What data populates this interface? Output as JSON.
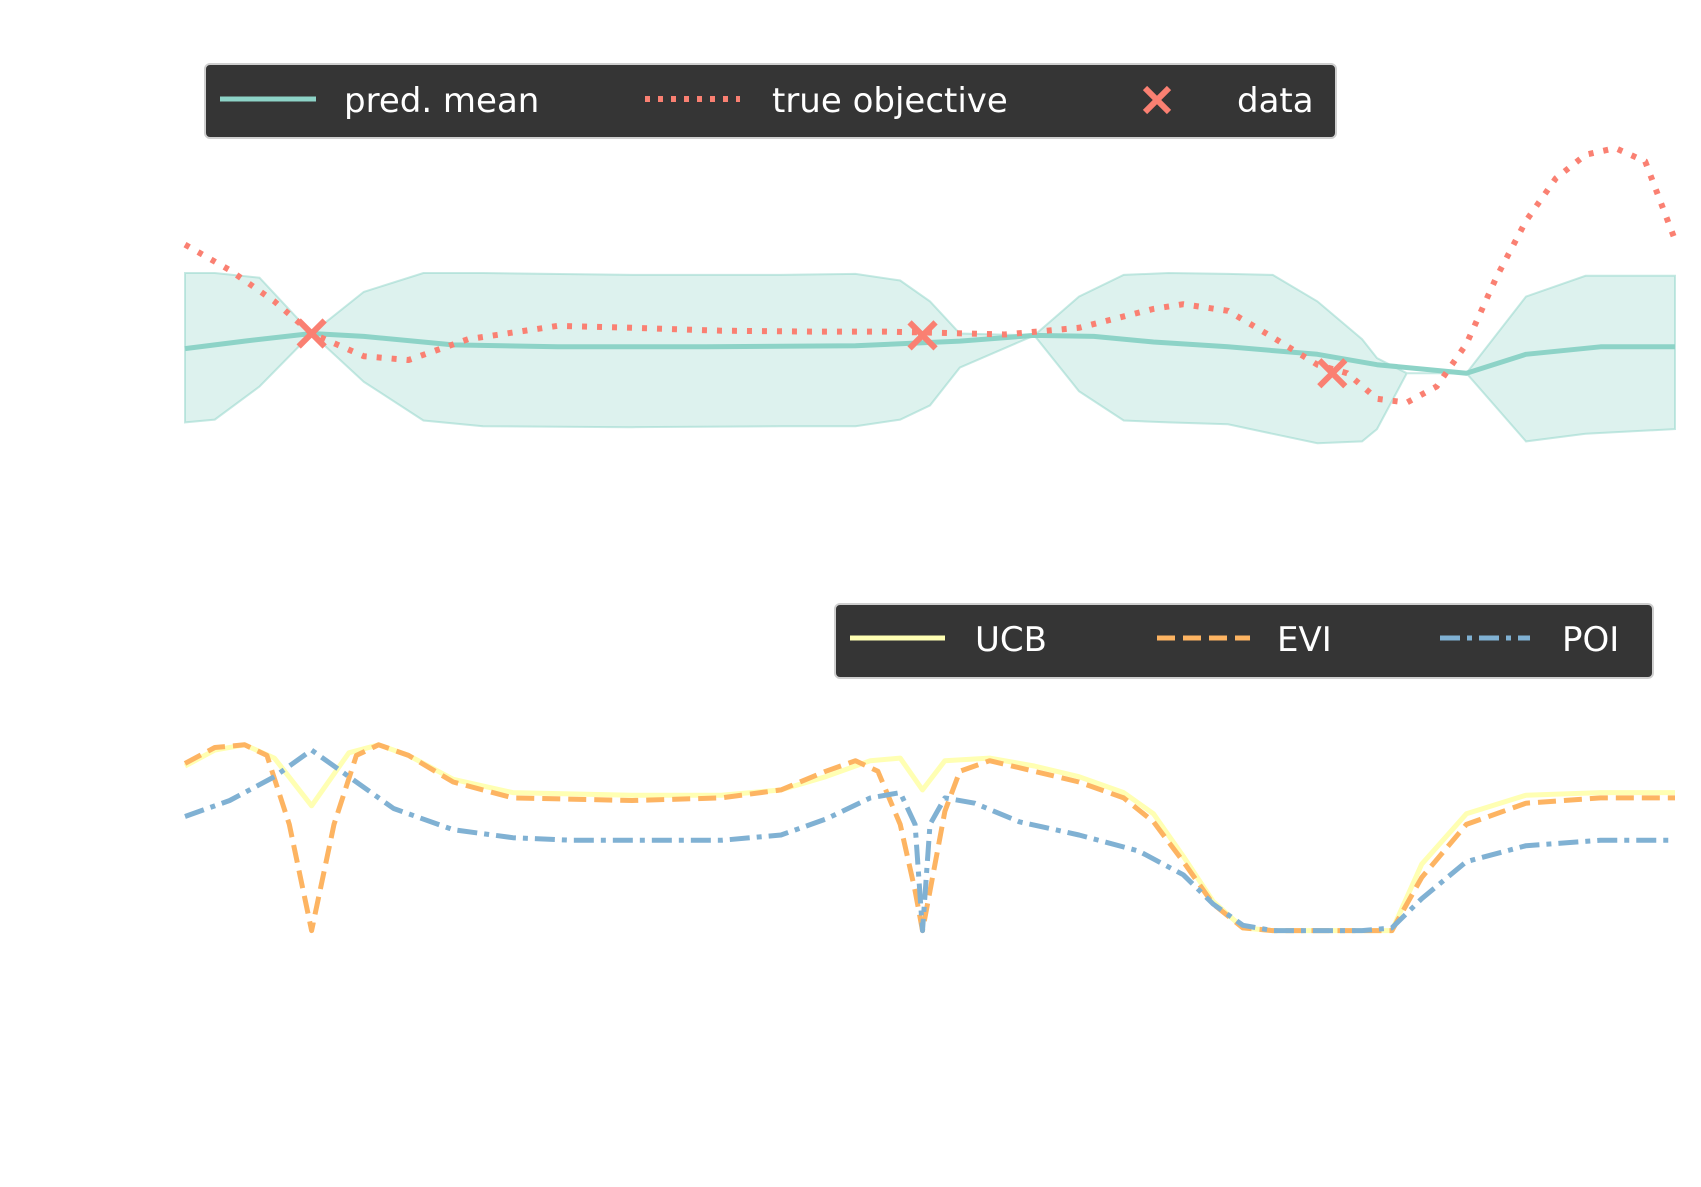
{
  "chart_data": [
    {
      "type": "line",
      "legend": {
        "placement": "top",
        "entries": [
          {
            "label": "pred. mean",
            "style": "solid",
            "color": "#8dd3c7"
          },
          {
            "label": "true objective",
            "style": "dotted",
            "color": "#fa8072"
          },
          {
            "label": "data",
            "style": "marker-x",
            "color": "#fa8072"
          }
        ]
      },
      "xlim": [
        0,
        1
      ],
      "ylim": [
        -1.4,
        2.3
      ],
      "grid": false,
      "series": [
        {
          "name": "pred. mean",
          "color": "#8dd3c7",
          "style": "solid",
          "x": [
            0.0,
            0.04,
            0.085,
            0.12,
            0.18,
            0.25,
            0.35,
            0.45,
            0.52,
            0.57,
            0.61,
            0.65,
            0.7,
            0.76,
            0.8,
            0.86,
            0.9,
            0.95,
            1.0
          ],
          "y": [
            0.2,
            0.28,
            0.36,
            0.33,
            0.24,
            0.22,
            0.22,
            0.23,
            0.28,
            0.34,
            0.33,
            0.27,
            0.22,
            0.14,
            0.03,
            -0.06,
            0.14,
            0.22,
            0.22
          ]
        },
        {
          "name": "true objective",
          "color": "#fa8072",
          "style": "dotted",
          "x": [
            0.0,
            0.03,
            0.06,
            0.085,
            0.12,
            0.15,
            0.19,
            0.25,
            0.3,
            0.36,
            0.42,
            0.47,
            0.5,
            0.55,
            0.6,
            0.65,
            0.67,
            0.7,
            0.73,
            0.76,
            0.78,
            0.8,
            0.82,
            0.84,
            0.86,
            0.88,
            0.9,
            0.92,
            0.94,
            0.96,
            0.98,
            1.0
          ],
          "y": [
            1.3,
            1.03,
            0.7,
            0.36,
            0.12,
            0.08,
            0.3,
            0.44,
            0.42,
            0.39,
            0.38,
            0.38,
            0.37,
            0.35,
            0.42,
            0.62,
            0.67,
            0.6,
            0.32,
            0.03,
            -0.06,
            -0.33,
            -0.37,
            -0.2,
            0.25,
            0.95,
            1.55,
            2.0,
            2.25,
            2.32,
            2.18,
            1.35
          ]
        }
      ],
      "confidence_band": {
        "color": "#8dd3c7",
        "x": [
          0.0,
          0.02,
          0.05,
          0.085,
          0.12,
          0.16,
          0.2,
          0.3,
          0.4,
          0.45,
          0.48,
          0.5,
          0.52,
          0.57,
          0.6,
          0.63,
          0.66,
          0.7,
          0.73,
          0.76,
          0.79,
          0.8,
          0.82,
          0.86,
          0.9,
          0.94,
          1.0
        ],
        "lower": [
          -0.58,
          -0.55,
          -0.2,
          0.36,
          -0.15,
          -0.56,
          -0.62,
          -0.63,
          -0.62,
          -0.62,
          -0.55,
          -0.4,
          0.0,
          0.34,
          -0.25,
          -0.56,
          -0.58,
          -0.6,
          -0.7,
          -0.8,
          -0.78,
          -0.65,
          -0.06,
          -0.06,
          -0.78,
          -0.7,
          -0.65
        ],
        "upper": [
          1.0,
          1.0,
          0.95,
          0.36,
          0.8,
          1.0,
          1.0,
          0.98,
          0.98,
          0.99,
          0.92,
          0.7,
          0.36,
          0.34,
          0.75,
          0.98,
          1.0,
          0.99,
          0.98,
          0.7,
          0.3,
          0.1,
          -0.06,
          -0.06,
          0.75,
          0.97,
          0.97
        ]
      },
      "data_points": {
        "name": "data",
        "color": "#fa8072",
        "marker": "x",
        "x": [
          0.085,
          0.495,
          0.77
        ],
        "y": [
          0.36,
          0.34,
          -0.06
        ]
      }
    },
    {
      "type": "line",
      "legend": {
        "placement": "top-right",
        "entries": [
          {
            "label": "UCB",
            "style": "solid",
            "color": "#ffffb3"
          },
          {
            "label": "EVI",
            "style": "dashed",
            "color": "#fdb462"
          },
          {
            "label": "POI",
            "style": "dashdot",
            "color": "#80b1d3"
          }
        ]
      },
      "xlim": [
        0,
        1
      ],
      "ylim": [
        -0.15,
        1.15
      ],
      "grid": false,
      "series": [
        {
          "name": "UCB",
          "color": "#ffffb3",
          "style": "solid",
          "x": [
            0.0,
            0.02,
            0.04,
            0.06,
            0.085,
            0.11,
            0.13,
            0.15,
            0.18,
            0.22,
            0.3,
            0.36,
            0.4,
            0.43,
            0.46,
            0.48,
            0.495,
            0.51,
            0.54,
            0.57,
            0.6,
            0.63,
            0.65,
            0.67,
            0.69,
            0.71,
            0.73,
            0.75,
            0.77,
            0.79,
            0.81,
            0.83,
            0.86,
            0.9,
            0.95,
            1.0
          ],
          "y": [
            0.92,
            0.98,
            1.0,
            0.95,
            0.77,
            0.97,
            1.0,
            0.96,
            0.87,
            0.82,
            0.81,
            0.81,
            0.83,
            0.88,
            0.94,
            0.95,
            0.83,
            0.94,
            0.95,
            0.92,
            0.88,
            0.82,
            0.74,
            0.58,
            0.41,
            0.31,
            0.3,
            0.3,
            0.3,
            0.3,
            0.3,
            0.55,
            0.74,
            0.81,
            0.82,
            0.82
          ]
        },
        {
          "name": "EVI",
          "color": "#fdb462",
          "style": "dashed",
          "x": [
            0.0,
            0.02,
            0.04,
            0.055,
            0.07,
            0.085,
            0.1,
            0.115,
            0.13,
            0.15,
            0.18,
            0.22,
            0.3,
            0.36,
            0.4,
            0.43,
            0.45,
            0.465,
            0.48,
            0.49,
            0.495,
            0.5,
            0.51,
            0.52,
            0.54,
            0.57,
            0.6,
            0.63,
            0.65,
            0.67,
            0.69,
            0.71,
            0.73,
            0.75,
            0.77,
            0.79,
            0.81,
            0.83,
            0.86,
            0.9,
            0.95,
            1.0
          ],
          "y": [
            0.93,
            0.99,
            1.0,
            0.96,
            0.7,
            0.3,
            0.7,
            0.96,
            1.0,
            0.96,
            0.86,
            0.8,
            0.79,
            0.8,
            0.83,
            0.9,
            0.94,
            0.9,
            0.7,
            0.45,
            0.3,
            0.45,
            0.75,
            0.9,
            0.94,
            0.9,
            0.86,
            0.8,
            0.71,
            0.56,
            0.4,
            0.31,
            0.3,
            0.3,
            0.3,
            0.3,
            0.3,
            0.5,
            0.7,
            0.78,
            0.8,
            0.8
          ]
        },
        {
          "name": "POI",
          "color": "#80b1d3",
          "style": "dashdot",
          "x": [
            0.0,
            0.03,
            0.06,
            0.085,
            0.11,
            0.14,
            0.18,
            0.22,
            0.26,
            0.3,
            0.36,
            0.4,
            0.43,
            0.46,
            0.48,
            0.49,
            0.495,
            0.5,
            0.51,
            0.53,
            0.56,
            0.6,
            0.64,
            0.67,
            0.69,
            0.71,
            0.73,
            0.75,
            0.77,
            0.79,
            0.81,
            0.83,
            0.86,
            0.9,
            0.95,
            1.0
          ],
          "y": [
            0.73,
            0.79,
            0.88,
            0.98,
            0.88,
            0.76,
            0.68,
            0.65,
            0.64,
            0.64,
            0.64,
            0.66,
            0.72,
            0.8,
            0.82,
            0.7,
            0.3,
            0.7,
            0.8,
            0.78,
            0.71,
            0.66,
            0.6,
            0.51,
            0.4,
            0.32,
            0.3,
            0.3,
            0.3,
            0.3,
            0.31,
            0.42,
            0.56,
            0.62,
            0.64,
            0.64
          ]
        }
      ]
    }
  ]
}
